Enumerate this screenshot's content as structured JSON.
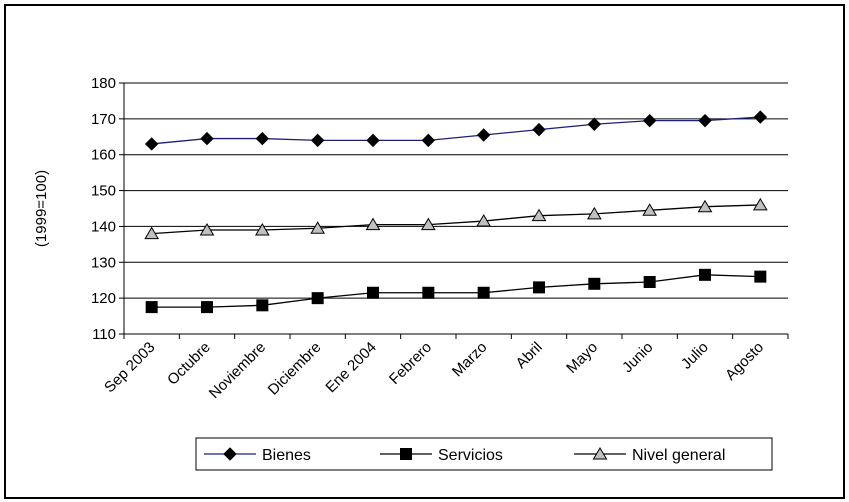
{
  "chart_data": {
    "type": "line",
    "categories": [
      "Sep 2003",
      "Octubre",
      "Noviembre",
      "Diciembre",
      "Ene 2004",
      "Febrero",
      "Marzo",
      "Abril",
      "Mayo",
      "Junio",
      "Julio",
      "Agosto"
    ],
    "ylabel": "(1999=100)",
    "ylim": [
      110,
      180
    ],
    "yticks": [
      110,
      120,
      130,
      140,
      150,
      160,
      170,
      180
    ],
    "grid": true,
    "legend_position": "bottom",
    "series": [
      {
        "name": "Bienes",
        "color": "#1f1f7a",
        "marker": "diamond",
        "values": [
          163,
          164.5,
          164.5,
          164,
          164,
          164,
          165.5,
          167,
          168.5,
          169.5,
          169.5,
          170.5
        ]
      },
      {
        "name": "Servicios",
        "color": "#000000",
        "marker": "square",
        "values": [
          117.5,
          117.5,
          118,
          120,
          121.5,
          121.5,
          121.5,
          123,
          124,
          124.5,
          126.5,
          126
        ]
      },
      {
        "name": "Nivel general",
        "color": "#000000",
        "marker": "triangle",
        "values": [
          138,
          139,
          139,
          139.5,
          140.5,
          140.5,
          141.5,
          143,
          143.5,
          144.5,
          145.5,
          146
        ]
      }
    ]
  }
}
